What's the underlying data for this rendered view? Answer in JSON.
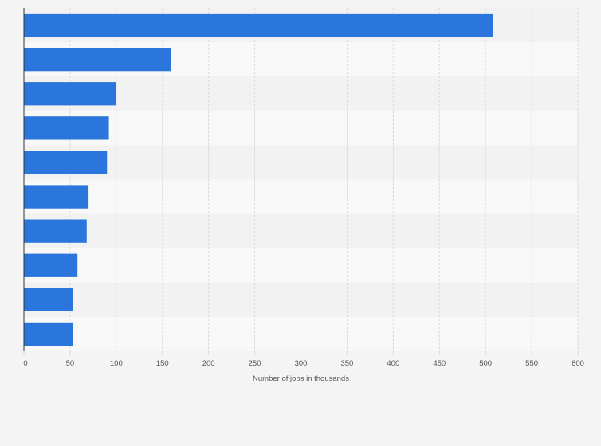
{
  "chart_data": {
    "type": "bar",
    "orientation": "horizontal",
    "categories": [
      "",
      "",
      "",
      "",
      "",
      "",
      "",
      "",
      "",
      ""
    ],
    "values": [
      508,
      159,
      100,
      92,
      90,
      70,
      68,
      58,
      53,
      53
    ],
    "xlabel": "Number of jobs in thousands",
    "ylabel": "",
    "xlim": [
      0,
      600
    ],
    "xticks": [
      0,
      50,
      100,
      150,
      200,
      250,
      300,
      350,
      400,
      450,
      500,
      550,
      600
    ],
    "grid": true,
    "legend": "none"
  },
  "colors": {
    "bar": "#2a76dd",
    "background": "#f4f4f4",
    "band_dark": "#f2f2f2",
    "band_light": "#f8f8f8",
    "grid": "#d9d9d9",
    "axis": "#333333",
    "text": "#555555"
  }
}
